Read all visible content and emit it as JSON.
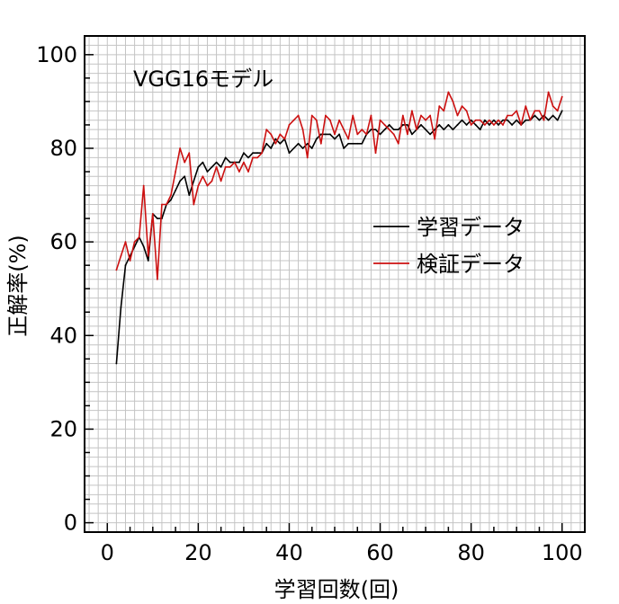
{
  "chart_data": {
    "type": "line",
    "title": "VGG16モデル",
    "xlabel": "学習回数(回)",
    "ylabel": "正解率(%)",
    "xlim": [
      -5,
      105
    ],
    "ylim": [
      -2,
      104
    ],
    "x_ticks": [
      0,
      20,
      40,
      60,
      80,
      100
    ],
    "y_ticks": [
      0,
      20,
      40,
      60,
      80,
      100
    ],
    "x_tick_labels": [
      "0",
      "20",
      "40",
      "60",
      "80",
      "100"
    ],
    "y_tick_labels": [
      "0",
      "20",
      "40",
      "60",
      "80",
      "100"
    ],
    "grid": true,
    "legend_position": "right-middle",
    "series": [
      {
        "name": "学習データ",
        "color": "#000000",
        "x": [
          2,
          3,
          4,
          5,
          6,
          7,
          8,
          9,
          10,
          11,
          12,
          13,
          14,
          15,
          16,
          17,
          18,
          19,
          20,
          21,
          22,
          23,
          24,
          25,
          26,
          27,
          28,
          29,
          30,
          31,
          32,
          33,
          34,
          35,
          36,
          37,
          38,
          39,
          40,
          41,
          42,
          43,
          44,
          45,
          46,
          47,
          48,
          49,
          50,
          51,
          52,
          53,
          54,
          55,
          56,
          57,
          58,
          59,
          60,
          61,
          62,
          63,
          64,
          65,
          66,
          67,
          68,
          69,
          70,
          71,
          72,
          73,
          74,
          75,
          76,
          77,
          78,
          79,
          80,
          81,
          82,
          83,
          84,
          85,
          86,
          87,
          88,
          89,
          90,
          91,
          92,
          93,
          94,
          95,
          96,
          97,
          98,
          99,
          100
        ],
        "values": [
          34,
          46,
          55,
          57,
          59,
          61,
          59,
          56,
          66,
          65,
          65,
          68,
          69,
          71,
          73,
          74,
          70,
          73,
          76,
          77,
          75,
          76,
          77,
          76,
          78,
          77,
          77,
          77,
          79,
          78,
          79,
          79,
          79,
          81,
          80,
          82,
          81,
          82,
          79,
          80,
          81,
          80,
          81,
          80,
          82,
          83,
          83,
          83,
          82,
          83,
          80,
          81,
          81,
          81,
          81,
          83,
          84,
          84,
          83,
          84,
          85,
          84,
          84,
          85,
          85,
          83,
          84,
          85,
          84,
          83,
          84,
          85,
          84,
          85,
          84,
          85,
          86,
          85,
          86,
          85,
          84,
          86,
          85,
          86,
          85,
          86,
          86,
          85,
          86,
          85,
          86,
          86,
          87,
          86,
          87,
          86,
          87,
          86,
          88
        ]
      },
      {
        "name": "検証データ",
        "color": "#cc1111",
        "x": [
          2,
          3,
          4,
          5,
          6,
          7,
          8,
          9,
          10,
          11,
          12,
          13,
          14,
          15,
          16,
          17,
          18,
          19,
          20,
          21,
          22,
          23,
          24,
          25,
          26,
          27,
          28,
          29,
          30,
          31,
          32,
          33,
          34,
          35,
          36,
          37,
          38,
          39,
          40,
          41,
          42,
          43,
          44,
          45,
          46,
          47,
          48,
          49,
          50,
          51,
          52,
          53,
          54,
          55,
          56,
          57,
          58,
          59,
          60,
          61,
          62,
          63,
          64,
          65,
          66,
          67,
          68,
          69,
          70,
          71,
          72,
          73,
          74,
          75,
          76,
          77,
          78,
          79,
          80,
          81,
          82,
          83,
          84,
          85,
          86,
          87,
          88,
          89,
          90,
          91,
          92,
          93,
          94,
          95,
          96,
          97,
          98,
          99,
          100
        ],
        "values": [
          54,
          57,
          60,
          56,
          60,
          61,
          72,
          57,
          66,
          52,
          68,
          68,
          70,
          75,
          80,
          77,
          79,
          68,
          72,
          74,
          72,
          73,
          76,
          73,
          76,
          76,
          77,
          75,
          77,
          75,
          78,
          78,
          79,
          84,
          83,
          81,
          83,
          82,
          85,
          86,
          87,
          84,
          78,
          87,
          86,
          81,
          87,
          86,
          83,
          86,
          84,
          82,
          87,
          83,
          84,
          83,
          87,
          79,
          86,
          85,
          84,
          83,
          81,
          87,
          83,
          88,
          84,
          87,
          86,
          87,
          82,
          89,
          88,
          92,
          90,
          87,
          89,
          88,
          85,
          86,
          86,
          85,
          86,
          85,
          86,
          85,
          87,
          87,
          88,
          85,
          89,
          86,
          88,
          88,
          86,
          92,
          89,
          88,
          91
        ]
      }
    ]
  }
}
